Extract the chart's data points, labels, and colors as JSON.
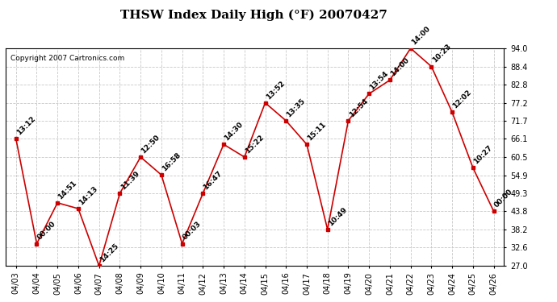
{
  "title": "THSW Index Daily High (°F) 20070427",
  "copyright": "Copyright 2007 Cartronics.com",
  "background_color": "#ffffff",
  "plot_background": "#ffffff",
  "grid_color": "#c8c8c8",
  "line_color": "#cc0000",
  "marker_color": "#cc0000",
  "text_color": "#000000",
  "ylim": [
    27.0,
    94.0
  ],
  "yticks": [
    27.0,
    32.6,
    38.2,
    43.8,
    49.3,
    54.9,
    60.5,
    66.1,
    71.7,
    77.2,
    82.8,
    88.4,
    94.0
  ],
  "dates": [
    "04/03",
    "04/04",
    "04/05",
    "04/06",
    "04/07",
    "04/08",
    "04/09",
    "04/10",
    "04/11",
    "04/12",
    "04/13",
    "04/14",
    "04/15",
    "04/16",
    "04/17",
    "04/18",
    "04/19",
    "04/20",
    "04/21",
    "04/22",
    "04/23",
    "04/24",
    "04/25",
    "04/26"
  ],
  "values": [
    66.1,
    33.8,
    46.4,
    44.6,
    27.0,
    49.3,
    60.5,
    55.0,
    33.8,
    49.3,
    64.4,
    60.5,
    77.2,
    71.7,
    64.4,
    38.2,
    71.7,
    80.0,
    84.2,
    94.0,
    88.4,
    74.3,
    57.2,
    43.8
  ],
  "time_labels": [
    "13:12",
    "00:00",
    "14:51",
    "14:13",
    "14:25",
    "11:39",
    "12:50",
    "16:58",
    "00:03",
    "16:47",
    "14:30",
    "15:22",
    "13:52",
    "13:35",
    "15:11",
    "10:49",
    "12:54",
    "13:54",
    "14:00",
    "14:00",
    "10:23",
    "12:02",
    "10:27",
    "00:00"
  ],
  "title_fontsize": 11,
  "tick_fontsize": 7,
  "label_fontsize": 6.5,
  "copyright_fontsize": 6.5
}
